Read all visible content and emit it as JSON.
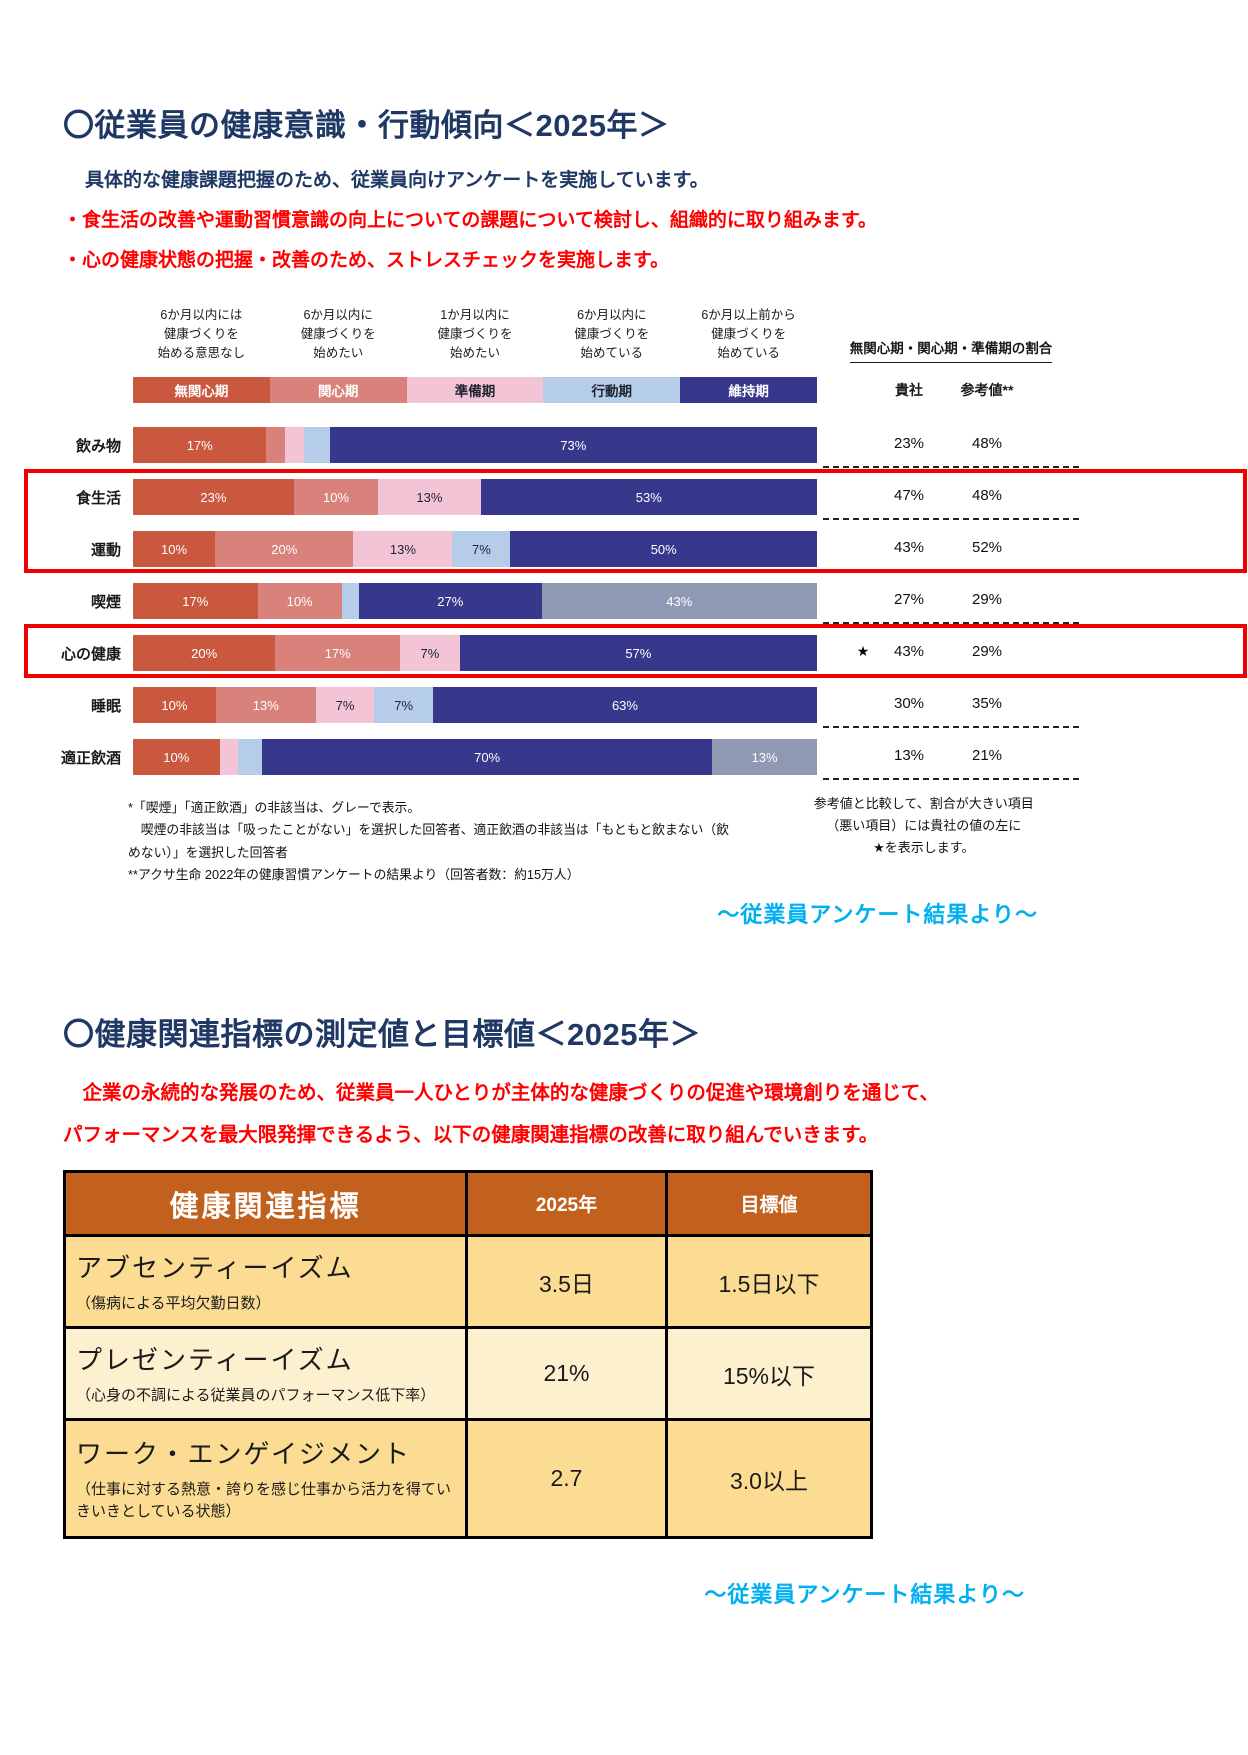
{
  "section1": {
    "title": "〇従業員の健康意識・行動傾向＜2025年＞",
    "subtitle": "具体的な健康課題把握のため、従業員向けアンケートを実施しています。",
    "bullet1": "・食生活の改善や運動習慣意識の向上についての課題について検討し、組織的に取り組みます。",
    "bullet2": "・心の健康状態の把握・改善のため、ストレスチェックを実施します。",
    "source_note": "～従業員アンケート結果より～"
  },
  "chart_data": {
    "type": "bar",
    "subtype": "horizontal-stacked-100percent",
    "stage_headers": [
      "6か月以内には\n健康づくりを\n始める意思なし",
      "6か月以内に\n健康づくりを\n始めたい",
      "1か月以内に\n健康づくりを\n始めたい",
      "6か月以内に\n健康づくりを\n始めている",
      "6か月以上前から\n健康づくりを\n始めている"
    ],
    "palette": {
      "red": "#C9583F",
      "salmon": "#D9827C",
      "pink": "#F2C4D6",
      "lightblue": "#B5CDE9",
      "navy": "#37388C",
      "gray": "#9099B4"
    },
    "dark_label_color": "#1f2430",
    "light_label_color": "#ffffff",
    "legend": [
      {
        "label": "無関心期",
        "color": "red"
      },
      {
        "label": "関心期",
        "color": "salmon"
      },
      {
        "label": "準備期",
        "color": "pink"
      },
      {
        "label": "行動期",
        "color": "lightblue"
      },
      {
        "label": "維持期",
        "color": "navy"
      }
    ],
    "right_panel": {
      "header": "無関心期・関心期・準備期の割合",
      "col1": "貴社",
      "col2": "参考値**",
      "star_symbol": "★"
    },
    "rows": [
      {
        "label": "飲み物",
        "company": "23%",
        "reference": "48%",
        "star": false,
        "segments": [
          {
            "stage": "無関心期",
            "color": "red",
            "value": 17,
            "label": "17%"
          },
          {
            "stage": "関心期",
            "color": "salmon",
            "value": 3,
            "label": ""
          },
          {
            "stage": "準備期",
            "color": "pink",
            "value": 3,
            "label": ""
          },
          {
            "stage": "行動期",
            "color": "lightblue",
            "value": 4,
            "label": ""
          },
          {
            "stage": "維持期",
            "color": "navy",
            "value": 73,
            "label": "73%"
          }
        ]
      },
      {
        "label": "食生活",
        "company": "47%",
        "reference": "48%",
        "star": false,
        "segments": [
          {
            "stage": "無関心期",
            "color": "red",
            "value": 23,
            "label": "23%"
          },
          {
            "stage": "関心期",
            "color": "salmon",
            "value": 10,
            "label": "10%"
          },
          {
            "stage": "準備期",
            "color": "pink",
            "value": 13,
            "label": "13%"
          },
          {
            "stage": "維持期",
            "color": "navy",
            "value": 53,
            "label": "53%"
          }
        ]
      },
      {
        "label": "運動",
        "company": "43%",
        "reference": "52%",
        "star": false,
        "segments": [
          {
            "stage": "無関心期",
            "color": "red",
            "value": 10,
            "label": "10%"
          },
          {
            "stage": "関心期",
            "color": "salmon",
            "value": 20,
            "label": "20%"
          },
          {
            "stage": "準備期",
            "color": "pink",
            "value": 13,
            "label": "13%"
          },
          {
            "stage": "行動期",
            "color": "lightblue",
            "value": 7,
            "label": "7%"
          },
          {
            "stage": "維持期",
            "color": "navy",
            "value": 50,
            "label": "50%"
          }
        ]
      },
      {
        "label": "喫煙",
        "company": "27%",
        "reference": "29%",
        "star": false,
        "segments": [
          {
            "stage": "無関心期",
            "color": "red",
            "value": 17,
            "label": "17%"
          },
          {
            "stage": "関心期",
            "color": "salmon",
            "value": 10,
            "label": "10%"
          },
          {
            "stage": "行動期",
            "color": "lightblue",
            "value": 3,
            "label": ""
          },
          {
            "stage": "維持期",
            "color": "navy",
            "value": 27,
            "label": "27%"
          },
          {
            "stage": "非該当",
            "color": "gray",
            "value": 43,
            "label": "43%"
          }
        ]
      },
      {
        "label": "心の健康",
        "company": "43%",
        "reference": "29%",
        "star": true,
        "segments": [
          {
            "stage": "無関心期",
            "color": "red",
            "value": 20,
            "label": "20%"
          },
          {
            "stage": "関心期",
            "color": "salmon",
            "value": 17,
            "label": "17%"
          },
          {
            "stage": "準備期",
            "color": "pink",
            "value": 7,
            "label": "7%"
          },
          {
            "stage": "維持期",
            "color": "navy",
            "value": 57,
            "label": "57%"
          }
        ]
      },
      {
        "label": "睡眠",
        "company": "30%",
        "reference": "35%",
        "star": false,
        "segments": [
          {
            "stage": "無関心期",
            "color": "red",
            "value": 10,
            "label": "10%"
          },
          {
            "stage": "関心期",
            "color": "salmon",
            "value": 13,
            "label": "13%"
          },
          {
            "stage": "準備期",
            "color": "pink",
            "value": 7,
            "label": "7%"
          },
          {
            "stage": "行動期",
            "color": "lightblue",
            "value": 7,
            "label": "7%"
          },
          {
            "stage": "維持期",
            "color": "navy",
            "value": 63,
            "label": "63%"
          }
        ]
      },
      {
        "label": "適正飲酒",
        "company": "13%",
        "reference": "21%",
        "star": false,
        "segments": [
          {
            "stage": "無関心期",
            "color": "red",
            "value": 10,
            "label": "10%"
          },
          {
            "stage": "準備期",
            "color": "pink",
            "value": 3,
            "label": ""
          },
          {
            "stage": "行動期",
            "color": "lightblue",
            "value": 4,
            "label": ""
          },
          {
            "stage": "維持期",
            "color": "navy",
            "value": 70,
            "label": "70%"
          },
          {
            "stage": "非該当",
            "color": "gray",
            "value": 13,
            "label": "13%"
          }
        ]
      }
    ],
    "highlight_boxes": [
      {
        "rows": [
          "食生活",
          "運動"
        ],
        "color": "#F00000"
      },
      {
        "rows": [
          "心の健康"
        ],
        "color": "#F00000"
      }
    ],
    "footnotes": [
      "*「喫煙」「適正飲酒」の非該当は、グレーで表示。",
      "　喫煙の非該当は「吸ったことがない」を選択した回答者、適正飲酒の非該当は「もともと飲まない（飲めない）」を選択した回答者",
      "**アクサ生命 2022年の健康習慣アンケートの結果より（回答者数：約15万人）"
    ],
    "star_note": "参考値と比較して、割合が大きい項目\n（悪い項目）には貴社の値の左に\n★を表示します。"
  },
  "section2": {
    "title": "〇健康関連指標の測定値と目標値＜2025年＞",
    "description_line1": "　企業の永続的な発展のため、従業員一人ひとりが主体的な健康づくりの促進や環境創りを通じて、",
    "description_line2": "パフォーマンスを最大限発揮できるよう、以下の健康関連指標の改善に取り組んでいきます。",
    "table": {
      "headers": [
        "健康関連指標",
        "2025年",
        "目標値"
      ],
      "rows": [
        {
          "name": "アブセンティーイズム",
          "sub": "（傷病による平均欠勤日数）",
          "value": "3.5日",
          "target": "1.5日以下"
        },
        {
          "name": "プレゼンティーイズム",
          "sub": "（心身の不調による従業員のパフォーマンス低下率）",
          "value": "21%",
          "target": "15%以下"
        },
        {
          "name": "ワーク・エンゲイジメント",
          "sub": "（仕事に対する熱意・誇りを感じ仕事から活力を得ていきいきとしている状態）",
          "value": "2.7",
          "target": "3.0以上"
        }
      ]
    },
    "source_note": "～従業員アンケート結果より～"
  }
}
